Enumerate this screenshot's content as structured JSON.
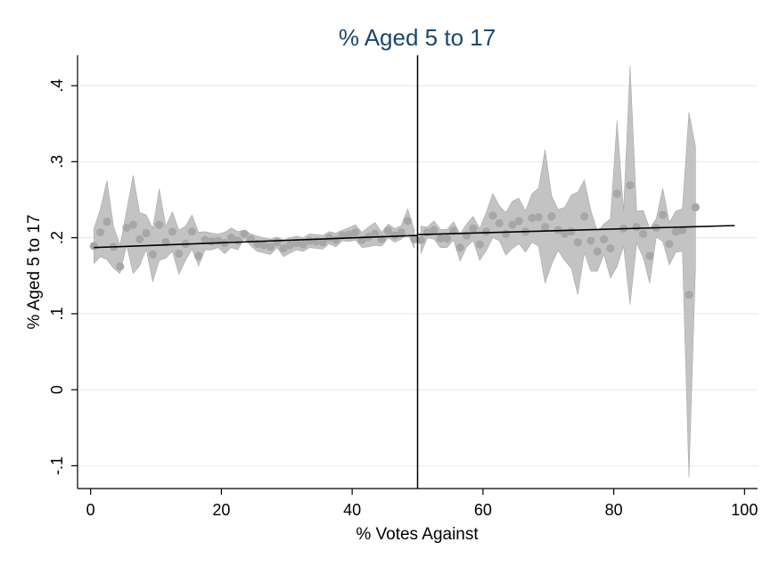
{
  "chart_data": {
    "type": "scatter",
    "title": "% Aged 5 to 17",
    "xlabel": "% Votes Against",
    "ylabel": "% Aged 5 to 17",
    "xlim": [
      -2,
      102
    ],
    "ylim": [
      -0.13,
      0.44
    ],
    "x_ticks": [
      {
        "value": 0,
        "label": "0"
      },
      {
        "value": 20,
        "label": "20"
      },
      {
        "value": 40,
        "label": "40"
      },
      {
        "value": 60,
        "label": "60"
      },
      {
        "value": 80,
        "label": "80"
      },
      {
        "value": 100,
        "label": "100"
      }
    ],
    "y_ticks": [
      {
        "value": -0.1,
        "label": "-.1"
      },
      {
        "value": 0,
        "label": "0"
      },
      {
        "value": 0.1,
        "label": ".1"
      },
      {
        "value": 0.2,
        "label": ".2"
      },
      {
        "value": 0.3,
        "label": ".3"
      },
      {
        "value": 0.4,
        "label": ".4"
      }
    ],
    "grid": true,
    "cutoff_x": 50,
    "colors": {
      "band": "#c3c3c3",
      "band_edge": "#a8a8a8",
      "points": "#a7a7a7",
      "fit": "#000000",
      "title": "#1a476f",
      "grid": "#e8e8e8"
    },
    "points": [
      {
        "x": 0.5,
        "y": 0.189
      },
      {
        "x": 1.5,
        "y": 0.207
      },
      {
        "x": 2.5,
        "y": 0.221
      },
      {
        "x": 3.5,
        "y": 0.188
      },
      {
        "x": 4.5,
        "y": 0.162
      },
      {
        "x": 5.5,
        "y": 0.213
      },
      {
        "x": 6.5,
        "y": 0.217
      },
      {
        "x": 7.5,
        "y": 0.198
      },
      {
        "x": 8.5,
        "y": 0.206
      },
      {
        "x": 9.5,
        "y": 0.178
      },
      {
        "x": 10.5,
        "y": 0.217
      },
      {
        "x": 11.5,
        "y": 0.194
      },
      {
        "x": 12.5,
        "y": 0.208
      },
      {
        "x": 13.5,
        "y": 0.179
      },
      {
        "x": 14.5,
        "y": 0.192
      },
      {
        "x": 15.5,
        "y": 0.208
      },
      {
        "x": 16.5,
        "y": 0.176
      },
      {
        "x": 17.5,
        "y": 0.197
      },
      {
        "x": 18.5,
        "y": 0.195
      },
      {
        "x": 19.5,
        "y": 0.196
      },
      {
        "x": 20.5,
        "y": 0.193
      },
      {
        "x": 21.5,
        "y": 0.2
      },
      {
        "x": 22.5,
        "y": 0.196
      },
      {
        "x": 23.5,
        "y": 0.205
      },
      {
        "x": 24.5,
        "y": 0.198
      },
      {
        "x": 25.5,
        "y": 0.192
      },
      {
        "x": 26.5,
        "y": 0.19
      },
      {
        "x": 27.5,
        "y": 0.188
      },
      {
        "x": 28.5,
        "y": 0.194
      },
      {
        "x": 29.5,
        "y": 0.186
      },
      {
        "x": 30.5,
        "y": 0.19
      },
      {
        "x": 31.5,
        "y": 0.193
      },
      {
        "x": 32.5,
        "y": 0.191
      },
      {
        "x": 33.5,
        "y": 0.196
      },
      {
        "x": 34.5,
        "y": 0.195
      },
      {
        "x": 35.5,
        "y": 0.194
      },
      {
        "x": 36.5,
        "y": 0.2
      },
      {
        "x": 37.5,
        "y": 0.197
      },
      {
        "x": 38.5,
        "y": 0.203
      },
      {
        "x": 39.5,
        "y": 0.204
      },
      {
        "x": 40.5,
        "y": 0.207
      },
      {
        "x": 41.5,
        "y": 0.197
      },
      {
        "x": 42.5,
        "y": 0.201
      },
      {
        "x": 43.5,
        "y": 0.205
      },
      {
        "x": 44.5,
        "y": 0.198
      },
      {
        "x": 45.5,
        "y": 0.209
      },
      {
        "x": 46.5,
        "y": 0.203
      },
      {
        "x": 47.5,
        "y": 0.207
      },
      {
        "x": 48.5,
        "y": 0.222
      },
      {
        "x": 49.5,
        "y": 0.198
      },
      {
        "x": 50.5,
        "y": 0.197
      },
      {
        "x": 51.5,
        "y": 0.207
      },
      {
        "x": 52.5,
        "y": 0.21
      },
      {
        "x": 53.5,
        "y": 0.199
      },
      {
        "x": 54.5,
        "y": 0.199
      },
      {
        "x": 55.5,
        "y": 0.209
      },
      {
        "x": 56.5,
        "y": 0.187
      },
      {
        "x": 57.5,
        "y": 0.203
      },
      {
        "x": 58.5,
        "y": 0.212
      },
      {
        "x": 59.5,
        "y": 0.191
      },
      {
        "x": 60.5,
        "y": 0.208
      },
      {
        "x": 61.5,
        "y": 0.229
      },
      {
        "x": 62.5,
        "y": 0.219
      },
      {
        "x": 63.5,
        "y": 0.205
      },
      {
        "x": 64.5,
        "y": 0.217
      },
      {
        "x": 65.5,
        "y": 0.222
      },
      {
        "x": 66.5,
        "y": 0.208
      },
      {
        "x": 67.5,
        "y": 0.226
      },
      {
        "x": 68.5,
        "y": 0.227
      },
      {
        "x": 69.5,
        "y": 0.214
      },
      {
        "x": 70.5,
        "y": 0.228
      },
      {
        "x": 71.5,
        "y": 0.21
      },
      {
        "x": 72.5,
        "y": 0.205
      },
      {
        "x": 73.5,
        "y": 0.208
      },
      {
        "x": 74.5,
        "y": 0.194
      },
      {
        "x": 75.5,
        "y": 0.228
      },
      {
        "x": 76.5,
        "y": 0.196
      },
      {
        "x": 77.5,
        "y": 0.182
      },
      {
        "x": 78.5,
        "y": 0.198
      },
      {
        "x": 79.5,
        "y": 0.186
      },
      {
        "x": 80.5,
        "y": 0.258
      },
      {
        "x": 81.5,
        "y": 0.212
      },
      {
        "x": 82.5,
        "y": 0.269
      },
      {
        "x": 83.5,
        "y": 0.214
      },
      {
        "x": 84.5,
        "y": 0.205
      },
      {
        "x": 85.5,
        "y": 0.176
      },
      {
        "x": 86.5,
        "y": 0.213
      },
      {
        "x": 87.5,
        "y": 0.23
      },
      {
        "x": 88.5,
        "y": 0.192
      },
      {
        "x": 89.5,
        "y": 0.208
      },
      {
        "x": 90.5,
        "y": 0.21
      },
      {
        "x": 91.5,
        "y": 0.125
      },
      {
        "x": 92.5,
        "y": 0.24
      }
    ],
    "band_upper": [
      0.212,
      0.238,
      0.275,
      0.215,
      0.19,
      0.235,
      0.282,
      0.233,
      0.23,
      0.212,
      0.264,
      0.215,
      0.234,
      0.21,
      0.215,
      0.23,
      0.207,
      0.208,
      0.206,
      0.205,
      0.207,
      0.213,
      0.208,
      0.21,
      0.205,
      0.202,
      0.2,
      0.198,
      0.201,
      0.197,
      0.2,
      0.202,
      0.2,
      0.205,
      0.204,
      0.203,
      0.208,
      0.206,
      0.21,
      0.213,
      0.217,
      0.207,
      0.214,
      0.22,
      0.207,
      0.218,
      0.212,
      0.216,
      0.238,
      0.21,
      0.215,
      0.214,
      0.222,
      0.211,
      0.211,
      0.221,
      0.205,
      0.218,
      0.228,
      0.212,
      0.233,
      0.258,
      0.242,
      0.233,
      0.248,
      0.252,
      0.235,
      0.258,
      0.265,
      0.316,
      0.255,
      0.237,
      0.24,
      0.256,
      0.26,
      0.276,
      0.236,
      0.208,
      0.218,
      0.225,
      0.354,
      0.235,
      0.426,
      0.235,
      0.236,
      0.212,
      0.225,
      0.265,
      0.22,
      0.235,
      0.238,
      0.365,
      0.32
    ],
    "band_lower": [
      0.166,
      0.175,
      0.171,
      0.16,
      0.153,
      0.19,
      0.153,
      0.163,
      0.185,
      0.142,
      0.17,
      0.173,
      0.182,
      0.152,
      0.17,
      0.185,
      0.163,
      0.184,
      0.184,
      0.187,
      0.179,
      0.187,
      0.184,
      0.199,
      0.189,
      0.182,
      0.18,
      0.178,
      0.187,
      0.175,
      0.18,
      0.184,
      0.182,
      0.187,
      0.186,
      0.185,
      0.192,
      0.188,
      0.196,
      0.195,
      0.197,
      0.187,
      0.188,
      0.19,
      0.189,
      0.2,
      0.194,
      0.198,
      0.206,
      0.186,
      0.179,
      0.2,
      0.198,
      0.187,
      0.187,
      0.197,
      0.169,
      0.188,
      0.196,
      0.17,
      0.183,
      0.2,
      0.196,
      0.177,
      0.186,
      0.192,
      0.181,
      0.194,
      0.189,
      0.14,
      0.165,
      0.183,
      0.17,
      0.16,
      0.125,
      0.18,
      0.156,
      0.156,
      0.178,
      0.147,
      0.162,
      0.189,
      0.112,
      0.193,
      0.174,
      0.14,
      0.201,
      0.195,
      0.164,
      0.181,
      0.182,
      -0.115,
      0.16
    ],
    "fit_left": {
      "x": [
        0.5,
        50
      ],
      "y": [
        0.187,
        0.203
      ]
    },
    "fit_right": {
      "x": [
        50,
        98.5
      ],
      "y": [
        0.204,
        0.216
      ]
    }
  }
}
